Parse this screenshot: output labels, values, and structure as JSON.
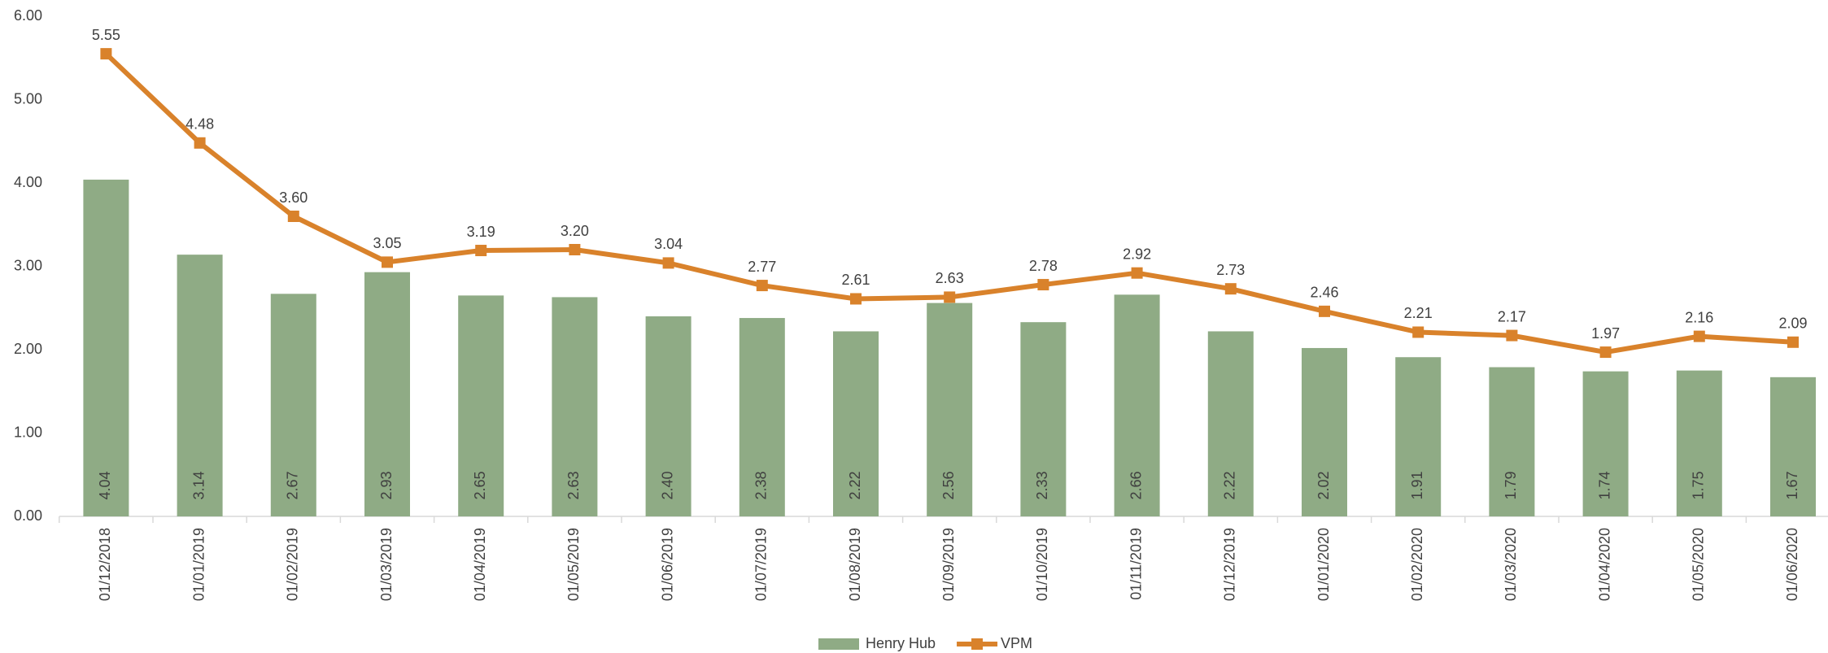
{
  "chart_data": {
    "type": "combo",
    "categories": [
      "01/12/2018",
      "01/01/2019",
      "01/02/2019",
      "01/03/2019",
      "01/04/2019",
      "01/05/2019",
      "01/06/2019",
      "01/07/2019",
      "01/08/2019",
      "01/09/2019",
      "01/10/2019",
      "01/11/2019",
      "01/12/2019",
      "01/01/2020",
      "01/02/2020",
      "01/03/2020",
      "01/04/2020",
      "01/05/2020",
      "01/06/2020"
    ],
    "series": [
      {
        "name": "Henry Hub",
        "type": "bar",
        "color": "#8fab85",
        "values": [
          4.04,
          3.14,
          2.67,
          2.93,
          2.65,
          2.63,
          2.4,
          2.38,
          2.22,
          2.56,
          2.33,
          2.66,
          2.22,
          2.02,
          1.91,
          1.79,
          1.74,
          1.75,
          1.67
        ],
        "value_labels": [
          "4.04",
          "3.14",
          "2.67",
          "2.93",
          "2.65",
          "2.63",
          "2.40",
          "2.38",
          "2.22",
          "2.56",
          "2.33",
          "2.66",
          "2.22",
          "2.02",
          "1.91",
          "1.79",
          "1.74",
          "1.75",
          "1.67"
        ]
      },
      {
        "name": "VPM",
        "type": "line",
        "color": "#d9822b",
        "values": [
          5.55,
          4.48,
          3.6,
          3.05,
          3.19,
          3.2,
          3.04,
          2.77,
          2.61,
          2.63,
          2.78,
          2.92,
          2.73,
          2.46,
          2.21,
          2.17,
          1.97,
          2.16,
          2.09
        ],
        "value_labels": [
          "5.55",
          "4.48",
          "3.60",
          "3.05",
          "3.19",
          "3.20",
          "3.04",
          "2.77",
          "2.61",
          "2.63",
          "2.78",
          "2.92",
          "2.73",
          "2.46",
          "2.21",
          "2.17",
          "1.97",
          "2.16",
          "2.09"
        ]
      }
    ],
    "ylim": [
      0,
      6
    ],
    "yticks": [
      {
        "value": 0,
        "label": "0.00"
      },
      {
        "value": 1,
        "label": "1.00"
      },
      {
        "value": 2,
        "label": "2.00"
      },
      {
        "value": 3,
        "label": "3.00"
      },
      {
        "value": 4,
        "label": "4.00"
      },
      {
        "value": 5,
        "label": "5.00"
      },
      {
        "value": 6,
        "label": "6.00"
      }
    ],
    "legend": "bottom"
  }
}
